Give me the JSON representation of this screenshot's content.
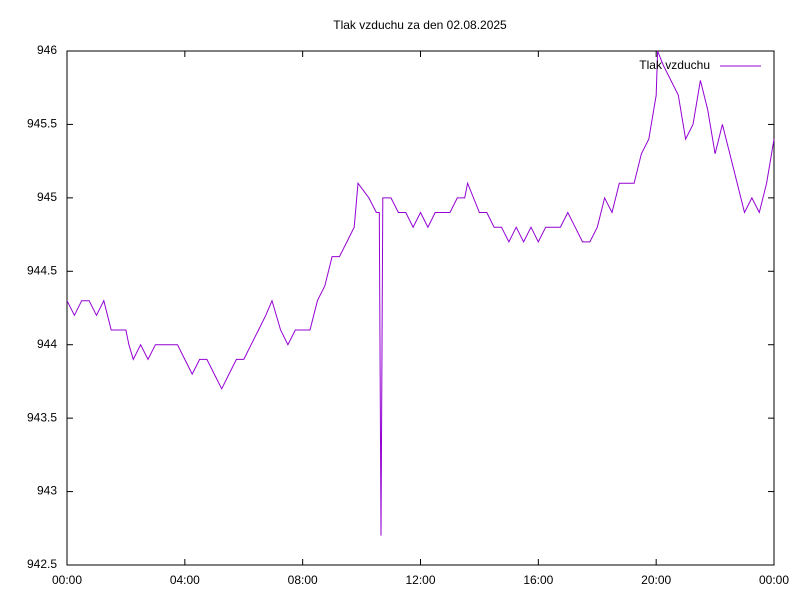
{
  "chart_data": {
    "type": "line",
    "title": "Tlak vzduchu za den 02.08.2025",
    "x": [
      0,
      0.25,
      0.5,
      0.75,
      1,
      1.25,
      1.5,
      1.75,
      2,
      2.1,
      2.25,
      2.5,
      2.75,
      3,
      3.25,
      3.5,
      3.75,
      4,
      4.25,
      4.5,
      4.75,
      5,
      5.25,
      5.5,
      5.75,
      6,
      6.25,
      6.5,
      6.75,
      6.96,
      7.25,
      7.5,
      7.75,
      8,
      8.25,
      8.5,
      8.75,
      9,
      9.25,
      9.5,
      9.75,
      9.88,
      10.25,
      10.5,
      10.6,
      10.66,
      10.72,
      11,
      11.25,
      11.5,
      11.75,
      12,
      12.25,
      12.5,
      12.75,
      13,
      13.25,
      13.5,
      13.6,
      14,
      14.25,
      14.5,
      14.75,
      15,
      15.25,
      15.5,
      15.75,
      16,
      16.25,
      16.5,
      16.75,
      17,
      17.25,
      17.5,
      17.75,
      18,
      18.25,
      18.5,
      18.75,
      19,
      19.25,
      19.5,
      19.75,
      20,
      20.05,
      20.25,
      20.5,
      20.75,
      21,
      21.25,
      21.5,
      21.75,
      22,
      22.25,
      22.5,
      22.75,
      23,
      23.25,
      23.5,
      23.75,
      24
    ],
    "series": [
      {
        "name": "Tlak vzduchu",
        "color": "#9400d3",
        "values": [
          944.3,
          944.2,
          944.3,
          944.3,
          944.2,
          944.3,
          944.1,
          944.1,
          944.1,
          944.0,
          943.9,
          944.0,
          943.9,
          944.0,
          944.0,
          944.0,
          944.0,
          943.9,
          943.8,
          943.9,
          943.9,
          943.8,
          943.7,
          943.8,
          943.9,
          943.9,
          944.0,
          944.1,
          944.2,
          944.3,
          944.1,
          944.0,
          944.1,
          944.1,
          944.1,
          944.3,
          944.4,
          944.6,
          944.6,
          944.7,
          944.8,
          945.1,
          945.0,
          944.9,
          944.9,
          942.7,
          945.0,
          945.0,
          944.9,
          944.9,
          944.8,
          944.9,
          944.8,
          944.9,
          944.9,
          944.9,
          945.0,
          945.0,
          945.1,
          944.9,
          944.9,
          944.8,
          944.8,
          944.7,
          944.8,
          944.7,
          944.8,
          944.7,
          944.8,
          944.8,
          944.8,
          944.9,
          944.8,
          944.7,
          944.7,
          944.8,
          945.0,
          944.9,
          945.1,
          945.1,
          945.1,
          945.3,
          945.4,
          945.7,
          946.0,
          945.9,
          945.8,
          945.7,
          945.4,
          945.5,
          945.8,
          945.6,
          945.3,
          945.5,
          945.3,
          945.1,
          944.9,
          945.0,
          944.9,
          945.1,
          945.4
        ]
      }
    ],
    "xlim": [
      0,
      24
    ],
    "xticks": [
      {
        "value": 0,
        "label": "00:00"
      },
      {
        "value": 4,
        "label": "04:00"
      },
      {
        "value": 8,
        "label": "08:00"
      },
      {
        "value": 12,
        "label": "12:00"
      },
      {
        "value": 16,
        "label": "16:00"
      },
      {
        "value": 20,
        "label": "20:00"
      },
      {
        "value": 24,
        "label": "00:00"
      }
    ],
    "ylim": [
      942.5,
      946
    ],
    "yticks": [
      942.5,
      943,
      943.5,
      944,
      944.5,
      945,
      945.5,
      946
    ],
    "legend": "top-right"
  }
}
